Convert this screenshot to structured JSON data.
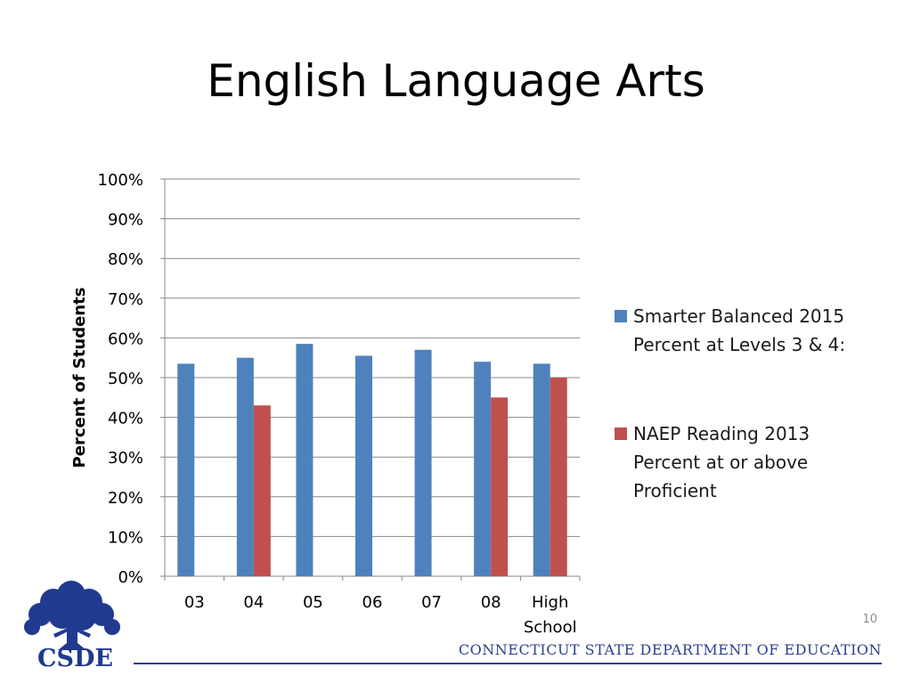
{
  "slide": {
    "title": "English Language Arts",
    "page_number": "10",
    "footer_text": "CONNECTICUT STATE DEPARTMENT OF EDUCATION",
    "logo_text": "CSDE",
    "logo_icon": "oak-tree-icon"
  },
  "colors": {
    "series_1": "#4f81bd",
    "series_2": "#c0504d",
    "gridline": "#888888",
    "logo": "#203a8f"
  },
  "legend": [
    {
      "lines": [
        "Smarter Balanced  2015",
        "Percent at Levels 3 & 4:"
      ]
    },
    {
      "lines": [
        "NAEP Reading 2013",
        "Percent at or above",
        "Proficient"
      ]
    }
  ],
  "chart_data": {
    "type": "bar",
    "title": "",
    "ylabel": "Percent of Students",
    "xlabel": "",
    "ylim": [
      0,
      100
    ],
    "y_ticks": [
      "0%",
      "10%",
      "20%",
      "30%",
      "40%",
      "50%",
      "60%",
      "70%",
      "80%",
      "90%",
      "100%"
    ],
    "categories": [
      "03",
      "04",
      "05",
      "06",
      "07",
      "08",
      "High School"
    ],
    "grid": true,
    "legend_position": "right",
    "series": [
      {
        "name": "Smarter Balanced  2015 Percent at Levels 3 & 4:",
        "values": [
          53.5,
          55,
          58.5,
          55.5,
          57,
          54,
          53.5
        ]
      },
      {
        "name": "NAEP Reading 2013 Percent at or above Proficient",
        "values": [
          null,
          43,
          null,
          null,
          null,
          45,
          50
        ]
      }
    ]
  }
}
